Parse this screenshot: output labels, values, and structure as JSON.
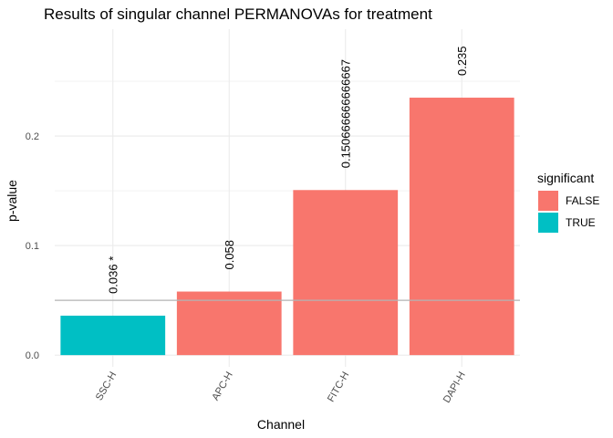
{
  "chart_data": {
    "type": "bar",
    "title": "Results of singular channel PERMANOVAs for treatment",
    "xlabel": "Channel",
    "ylabel": "p-value",
    "categories": [
      "SSC-H",
      "APC-H",
      "FITC-H",
      "DAPI-H"
    ],
    "values": [
      0.036,
      0.058,
      0.150666666666667,
      0.235
    ],
    "bar_labels": [
      "0.036 *",
      "0.058",
      "0.150666666666667",
      "0.235"
    ],
    "significant": [
      "TRUE",
      "FALSE",
      "FALSE",
      "FALSE"
    ],
    "yticks": [
      0.0,
      0.1,
      0.2
    ],
    "ytick_labels": [
      "0.0",
      "0.1",
      "0.2"
    ],
    "ylim": [
      -0.0107,
      0.2975
    ],
    "reference_line": 0.05,
    "grid": true,
    "legend": {
      "title": "significant",
      "placement": "right",
      "entries": [
        {
          "label": "FALSE",
          "color": "#F8766D"
        },
        {
          "label": "TRUE",
          "color": "#00BFC4"
        }
      ]
    },
    "colors": {
      "FALSE": "#F8766D",
      "TRUE": "#00BFC4",
      "reference_line": "#b3b3b3",
      "grid": "#ebebeb"
    }
  }
}
